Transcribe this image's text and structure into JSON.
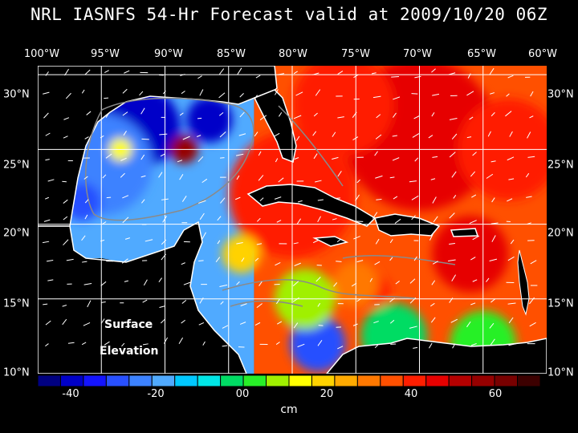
{
  "title": "NRL IASNFS  54-Hr Forecast valid at 2009/10/20 06Z",
  "lon_labels": [
    "100°W",
    "95°W",
    "90°W",
    "85°W",
    "80°W",
    "75°W",
    "70°W",
    "65°W",
    "60°W"
  ],
  "lat_labels": [
    "30°N",
    "25°N",
    "20°N",
    "15°N",
    "10°N"
  ],
  "field_labels": {
    "line1": "Surface",
    "line2": "Elevation"
  },
  "colorbar": {
    "tick_labels": [
      "-40",
      "-20",
      "00",
      "20",
      "40",
      "60"
    ],
    "unit": "cm",
    "colors": [
      "#000080",
      "#0000c8",
      "#1414ff",
      "#2850ff",
      "#3c82ff",
      "#50aaff",
      "#00c8ff",
      "#00e6e6",
      "#00dc64",
      "#28f028",
      "#a0f000",
      "#ffff00",
      "#ffd200",
      "#ffaa00",
      "#ff7800",
      "#ff5000",
      "#ff1e00",
      "#e60000",
      "#b40000",
      "#960000",
      "#780000",
      "#3c0000"
    ]
  },
  "map_data": {
    "lon_range": [
      -100,
      -60
    ],
    "lat_range": [
      10,
      30.6
    ],
    "value_range": [
      -48,
      70
    ],
    "anomalies": [
      {
        "lon": -92,
        "lat": 26.5,
        "value": -40,
        "r": 3.2
      },
      {
        "lon": -95,
        "lat": 24,
        "value": -25,
        "r": 4
      },
      {
        "lon": -96.5,
        "lat": 21.5,
        "value": -30,
        "r": 1.5
      },
      {
        "lon": -88.5,
        "lat": 25,
        "value": 55,
        "r": 1.1
      },
      {
        "lon": -93.5,
        "lat": 25,
        "value": 14,
        "r": 0.9
      },
      {
        "lon": -86.5,
        "lat": 27,
        "value": -38,
        "r": 1.8
      },
      {
        "lon": -80,
        "lat": 22,
        "value": 40,
        "r": 5
      },
      {
        "lon": -70,
        "lat": 26,
        "value": 45,
        "r": 6
      },
      {
        "lon": -63,
        "lat": 25,
        "value": 38,
        "r": 4
      },
      {
        "lon": -76,
        "lat": 28,
        "value": 40,
        "r": 4
      },
      {
        "lon": -66,
        "lat": 18,
        "value": 45,
        "r": 3
      },
      {
        "lon": -78,
        "lat": 12,
        "value": -30,
        "r": 2.2
      },
      {
        "lon": -72,
        "lat": 12.5,
        "value": -5,
        "r": 2.6
      },
      {
        "lon": -65,
        "lat": 12,
        "value": 5,
        "r": 2.6
      },
      {
        "lon": -79,
        "lat": 15,
        "value": 10,
        "r": 2.4
      },
      {
        "lon": -73.5,
        "lat": 15.5,
        "value": 40,
        "r": 1.2
      },
      {
        "lon": -75,
        "lat": 16,
        "value": 28,
        "r": 1.8
      },
      {
        "lon": -84,
        "lat": 18,
        "value": 18,
        "r": 1.5
      }
    ]
  }
}
